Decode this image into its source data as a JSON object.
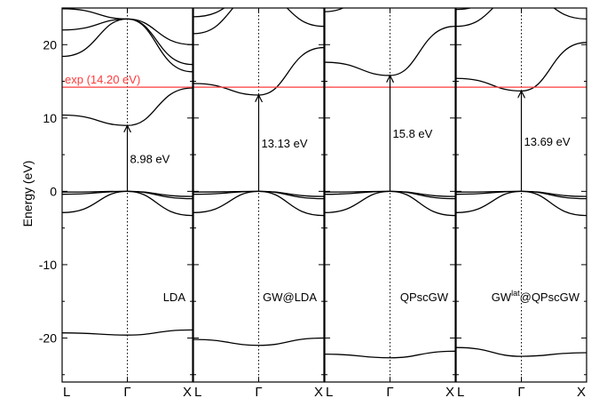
{
  "chart_data": {
    "type": "line",
    "ylabel": "Energy (eV)",
    "ylim": [
      -26,
      25
    ],
    "yticks": [
      -20,
      -10,
      0,
      10,
      20
    ],
    "x_tick_labels": [
      "L",
      "Γ",
      "X"
    ],
    "reference_line": {
      "label": "exp (14.20 eV)",
      "value": 14.2,
      "color": "#ff3b3b"
    },
    "panels": [
      {
        "label": "LDA",
        "gap": {
          "label": "8.98 eV",
          "from": 0.0,
          "to": 8.98
        },
        "bands": [
          {
            "L": -19.3,
            "G": -19.6,
            "X": -18.9
          },
          {
            "L": -2.9,
            "G": 0.0,
            "X": -3.3
          },
          {
            "L": -0.4,
            "G": 0.0,
            "X": -1.0
          },
          {
            "L": -0.1,
            "G": 0.0,
            "X": -0.7
          },
          {
            "L": 10.4,
            "G": 8.98,
            "X": 14.1
          },
          {
            "L": 18.4,
            "G": 23.5,
            "X": 16.3
          },
          {
            "L": 22.0,
            "G": 23.5,
            "X": 17.3
          },
          {
            "L": 24.9,
            "G": 23.5,
            "X": 20.0
          }
        ]
      },
      {
        "label": "GW@LDA",
        "gap": {
          "label": "13.13 eV",
          "from": 0.0,
          "to": 13.13
        },
        "bands": [
          {
            "L": -20.2,
            "G": -21.0,
            "X": -20.0
          },
          {
            "L": -2.9,
            "G": 0.0,
            "X": -3.3
          },
          {
            "L": -0.4,
            "G": 0.0,
            "X": -1.0
          },
          {
            "L": -0.1,
            "G": 0.0,
            "X": -0.7
          },
          {
            "L": 14.7,
            "G": 13.13,
            "X": 19.6
          },
          {
            "L": 21.5,
            "G": 27.0,
            "X": 22.5
          },
          {
            "L": 23.8,
            "G": 27.0,
            "X": 25.0
          }
        ]
      },
      {
        "label": "QPscGW",
        "gap": {
          "label": "15.8 eV",
          "from": 0.0,
          "to": 15.8
        },
        "bands": [
          {
            "L": -22.2,
            "G": -22.7,
            "X": -21.8
          },
          {
            "L": -2.9,
            "G": 0.0,
            "X": -3.3
          },
          {
            "L": -0.4,
            "G": 0.0,
            "X": -1.0
          },
          {
            "L": -0.1,
            "G": 0.0,
            "X": -0.7
          },
          {
            "L": 17.6,
            "G": 15.8,
            "X": 22.5
          },
          {
            "L": 24.5,
            "G": 29.0,
            "X": 26.0
          }
        ]
      },
      {
        "label": "GWlat@QPscGW",
        "label_main": "GW",
        "label_sup": "lat",
        "label_rest": "@QPscGW",
        "gap": {
          "label": "13.69 eV",
          "from": 0.0,
          "to": 13.69
        },
        "bands": [
          {
            "L": -21.3,
            "G": -22.5,
            "X": -22.0
          },
          {
            "L": -2.9,
            "G": 0.0,
            "X": -3.3
          },
          {
            "L": -0.4,
            "G": 0.0,
            "X": -1.0
          },
          {
            "L": -0.1,
            "G": 0.0,
            "X": -0.7
          },
          {
            "L": 15.4,
            "G": 13.69,
            "X": 20.3
          },
          {
            "L": 22.5,
            "G": 27.0,
            "X": 23.5
          },
          {
            "L": 24.8,
            "G": 28.0,
            "X": 26.0
          }
        ]
      }
    ]
  }
}
